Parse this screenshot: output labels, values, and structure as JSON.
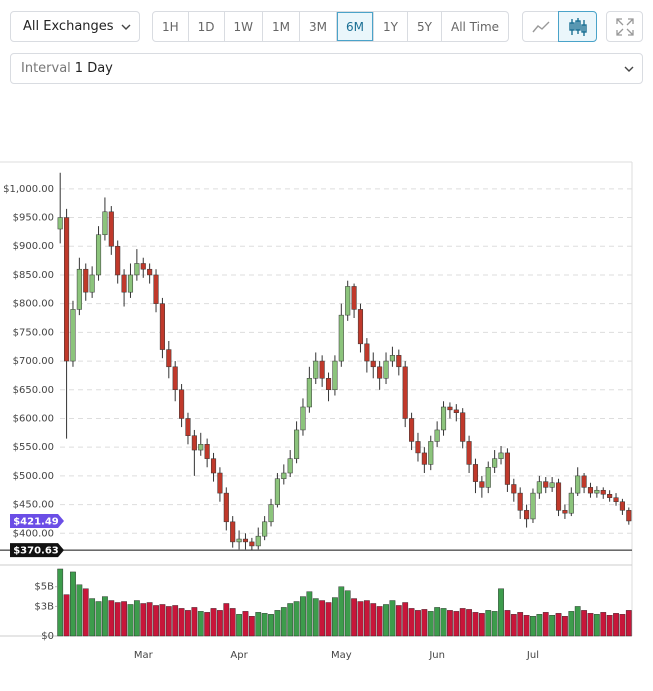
{
  "toolbar": {
    "exchange": "All Exchanges",
    "ranges": [
      "1H",
      "1D",
      "1W",
      "1M",
      "3M",
      "6M",
      "1Y",
      "5Y",
      "All Time"
    ],
    "active": "6M"
  },
  "interval": {
    "label": "Interval",
    "value": "1 Day"
  },
  "chart_data": {
    "type": "candlestick",
    "categories": [
      null,
      null,
      null,
      null,
      null,
      null,
      null,
      null,
      null,
      null,
      null,
      null,
      null,
      "Mar",
      null,
      null,
      null,
      null,
      null,
      null,
      null,
      null,
      null,
      null,
      null,
      null,
      null,
      null,
      "Apr",
      null,
      null,
      null,
      null,
      null,
      null,
      null,
      null,
      null,
      null,
      null,
      null,
      null,
      null,
      null,
      "May",
      null,
      null,
      null,
      null,
      null,
      null,
      null,
      null,
      null,
      null,
      null,
      null,
      null,
      null,
      "Jun",
      null,
      null,
      null,
      null,
      null,
      null,
      null,
      null,
      null,
      null,
      null,
      null,
      null,
      null,
      "Jul",
      null,
      null,
      null,
      null,
      null,
      null,
      null,
      null,
      null,
      null,
      null,
      null,
      null,
      null,
      null
    ],
    "open": [
      930,
      950,
      700,
      790,
      860,
      820,
      850,
      920,
      960,
      900,
      850,
      820,
      850,
      870,
      860,
      850,
      800,
      720,
      690,
      650,
      600,
      570,
      545,
      555,
      530,
      505,
      470,
      420,
      385,
      390,
      385,
      378,
      395,
      420,
      450,
      495,
      505,
      530,
      580,
      620,
      670,
      700,
      670,
      650,
      700,
      780,
      830,
      790,
      730,
      700,
      690,
      670,
      700,
      710,
      690,
      600,
      560,
      540,
      520,
      560,
      580,
      620,
      615,
      610,
      560,
      520,
      490,
      480,
      515,
      530,
      540,
      485,
      470,
      440,
      425,
      470,
      490,
      480,
      488,
      440,
      435,
      470,
      500,
      480,
      470,
      475,
      468,
      462,
      455,
      440
    ],
    "high": [
      1028,
      965,
      805,
      880,
      870,
      865,
      935,
      985,
      970,
      910,
      860,
      870,
      895,
      880,
      870,
      860,
      810,
      735,
      700,
      660,
      610,
      580,
      575,
      565,
      540,
      515,
      480,
      430,
      405,
      400,
      392,
      410,
      430,
      460,
      505,
      520,
      545,
      595,
      635,
      690,
      715,
      710,
      680,
      710,
      800,
      840,
      835,
      800,
      740,
      715,
      700,
      715,
      725,
      720,
      700,
      610,
      575,
      550,
      570,
      595,
      630,
      628,
      625,
      618,
      570,
      530,
      500,
      525,
      545,
      552,
      548,
      495,
      480,
      450,
      478,
      500,
      498,
      498,
      495,
      450,
      480,
      515,
      505,
      488,
      482,
      480,
      475,
      470,
      460,
      445
    ],
    "low": [
      905,
      565,
      690,
      780,
      805,
      810,
      840,
      910,
      885,
      835,
      795,
      810,
      840,
      845,
      835,
      785,
      705,
      670,
      630,
      585,
      555,
      500,
      535,
      515,
      490,
      455,
      405,
      375,
      372,
      372,
      371,
      372,
      388,
      412,
      445,
      485,
      498,
      522,
      570,
      610,
      660,
      655,
      630,
      640,
      690,
      770,
      775,
      715,
      680,
      670,
      650,
      660,
      690,
      675,
      585,
      545,
      525,
      505,
      510,
      550,
      570,
      600,
      595,
      548,
      505,
      470,
      462,
      470,
      505,
      520,
      472,
      455,
      425,
      410,
      418,
      460,
      470,
      472,
      430,
      425,
      430,
      465,
      470,
      462,
      462,
      460,
      455,
      448,
      432,
      415
    ],
    "close": [
      950,
      700,
      790,
      860,
      820,
      850,
      920,
      960,
      900,
      850,
      820,
      850,
      870,
      860,
      850,
      800,
      720,
      690,
      650,
      600,
      570,
      545,
      555,
      530,
      505,
      470,
      420,
      385,
      390,
      385,
      378,
      395,
      420,
      450,
      495,
      505,
      530,
      580,
      620,
      670,
      700,
      670,
      650,
      700,
      780,
      830,
      790,
      730,
      700,
      690,
      670,
      700,
      710,
      690,
      600,
      560,
      540,
      520,
      560,
      580,
      620,
      615,
      610,
      560,
      520,
      490,
      480,
      515,
      530,
      540,
      485,
      470,
      440,
      425,
      470,
      490,
      480,
      488,
      440,
      435,
      470,
      500,
      480,
      470,
      475,
      468,
      462,
      455,
      440,
      421.49
    ],
    "volume": [
      6.8,
      4.2,
      6.5,
      5.2,
      4.8,
      3.8,
      3.5,
      4,
      3.6,
      3.4,
      3.5,
      3.2,
      3.6,
      3.3,
      3.4,
      3.1,
      3.2,
      3,
      3.1,
      2.8,
      2.6,
      2.9,
      2.5,
      2.4,
      2.8,
      2.6,
      3.3,
      2.8,
      2.2,
      2.5,
      2.0,
      2.4,
      2.3,
      2.2,
      2.6,
      2.9,
      3.3,
      3.5,
      4.0,
      4.5,
      3.8,
      3.6,
      3.4,
      3.9,
      5.0,
      4.6,
      3.8,
      3.5,
      3.6,
      3.3,
      3.0,
      3.2,
      3.6,
      3.1,
      3.4,
      2.8,
      2.6,
      2.7,
      2.5,
      2.9,
      2.8,
      2.6,
      2.5,
      2.8,
      2.7,
      2.4,
      2.3,
      2.6,
      2.5,
      4.8,
      2.6,
      2.2,
      2.4,
      2.1,
      2.0,
      2.2,
      2.4,
      2.1,
      2.3,
      2.0,
      2.5,
      3.0,
      2.6,
      2.3,
      2.2,
      2.4,
      2.1,
      2.3,
      2.2,
      2.6
    ],
    "ylim": [
      350,
      1045
    ],
    "yticks": [
      {
        "value": 400,
        "label": "$400.00"
      },
      {
        "value": 450,
        "label": "$450.00"
      },
      {
        "value": 500,
        "label": "$500.00"
      },
      {
        "value": 550,
        "label": "$550.00"
      },
      {
        "value": 600,
        "label": "$600.00"
      },
      {
        "value": 650,
        "label": "$650.00"
      },
      {
        "value": 700,
        "label": "$700.00"
      },
      {
        "value": 750,
        "label": "$750.00"
      },
      {
        "value": 800,
        "label": "$800.00"
      },
      {
        "value": 850,
        "label": "$850.00"
      },
      {
        "value": 900,
        "label": "$900.00"
      },
      {
        "value": 950,
        "label": "$950.00"
      },
      {
        "value": 1000,
        "label": "$1,000.00"
      }
    ],
    "volume_ylim": [
      0,
      7
    ],
    "volume_yticks": [
      {
        "value": 0,
        "label": "$0"
      },
      {
        "value": 3,
        "label": "$3B"
      },
      {
        "value": 5,
        "label": "$5B"
      }
    ],
    "price_lines": [
      {
        "value": 421.49,
        "label": "$421.49",
        "color": "#6b4ee6",
        "line": false
      },
      {
        "value": 370.63,
        "label": "$370.63",
        "color": "#111111",
        "line": true
      }
    ],
    "up_color": "#8cc47c",
    "down_color": "#c0392b",
    "volume_up_color": "#3d9c4c",
    "volume_down_color": "#c8163a",
    "grid": true
  }
}
